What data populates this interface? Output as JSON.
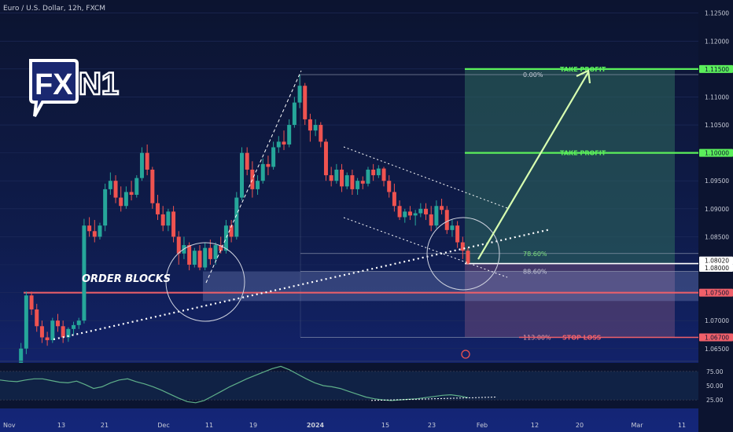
{
  "header": {
    "symbol_text": "Euro / U.S. Dollar, 12h, FXCM"
  },
  "logo": {
    "text_fx": "FX",
    "text_n1": "N1"
  },
  "colors": {
    "up": "#26a69a",
    "down": "#ef5350",
    "green_line": "#5bef5b",
    "red_line": "#f0606a",
    "profit_zone": "#2f6b5e",
    "loss_zone": "#6a4a7a",
    "order_block": "#8fa0d8",
    "rsi_line": "#5fb08a"
  },
  "chart_data": {
    "type": "candlestick",
    "title": "Euro / U.S. Dollar, 12h, FXCM",
    "y_ticks": [
      "1.12500",
      "1.12000",
      "1.11500",
      "1.11000",
      "1.10500",
      "1.10000",
      "1.09500",
      "1.09000",
      "1.08500",
      "1.08000",
      "1.07500",
      "1.07000",
      "1.06500"
    ],
    "ylim": [
      1.063,
      1.1265
    ],
    "x_ticks": [
      "Nov",
      "13",
      "21",
      "Dec",
      "11",
      "19",
      "2024",
      "15",
      "23",
      "Feb",
      "12",
      "20",
      "Mar",
      "11"
    ],
    "candles": [
      [
        1.0575,
        1.0615,
        1.0565,
        1.061
      ],
      [
        1.061,
        1.066,
        1.06,
        1.065
      ],
      [
        1.065,
        1.0752,
        1.064,
        1.0745
      ],
      [
        1.0745,
        1.0752,
        1.071,
        1.072
      ],
      [
        1.072,
        1.073,
        1.068,
        1.069
      ],
      [
        1.069,
        1.07,
        1.066,
        1.067
      ],
      [
        1.067,
        1.068,
        1.0655,
        1.0665
      ],
      [
        1.0665,
        1.0705,
        1.066,
        1.07
      ],
      [
        1.07,
        1.0712,
        1.068,
        1.069
      ],
      [
        1.069,
        1.07,
        1.066,
        1.067
      ],
      [
        1.067,
        1.0688,
        1.0662,
        1.0685
      ],
      [
        1.0685,
        1.0698,
        1.0675,
        1.0692
      ],
      [
        1.0692,
        1.0705,
        1.0685,
        1.07
      ],
      [
        1.07,
        1.0882,
        1.0695,
        1.087
      ],
      [
        1.087,
        1.0885,
        1.085,
        1.086
      ],
      [
        1.086,
        1.088,
        1.084,
        1.085
      ],
      [
        1.085,
        1.0875,
        1.0845,
        1.087
      ],
      [
        1.087,
        1.0945,
        1.086,
        1.0935
      ],
      [
        1.0935,
        1.0965,
        1.0925,
        1.095
      ],
      [
        1.095,
        1.096,
        1.091,
        1.092
      ],
      [
        1.092,
        1.094,
        1.0895,
        1.0905
      ],
      [
        1.0905,
        1.094,
        1.09,
        1.093
      ],
      [
        1.093,
        1.095,
        1.0915,
        1.0925
      ],
      [
        1.0925,
        1.096,
        1.092,
        1.0955
      ],
      [
        1.0955,
        1.101,
        1.095,
        1.1
      ],
      [
        1.1,
        1.1015,
        1.096,
        1.097
      ],
      [
        1.097,
        1.0975,
        1.09,
        1.091
      ],
      [
        1.091,
        1.0925,
        1.088,
        1.089
      ],
      [
        1.089,
        1.0905,
        1.086,
        1.087
      ],
      [
        1.087,
        1.09,
        1.086,
        1.0895
      ],
      [
        1.0895,
        1.0905,
        1.084,
        1.085
      ],
      [
        1.085,
        1.086,
        1.08,
        1.082
      ],
      [
        1.082,
        1.085,
        1.081,
        1.0835
      ],
      [
        1.0835,
        1.084,
        1.079,
        1.08
      ],
      [
        1.08,
        1.083,
        1.0795,
        1.0825
      ],
      [
        1.0825,
        1.0835,
        1.079,
        1.0795
      ],
      [
        1.0795,
        1.084,
        1.079,
        1.083
      ],
      [
        1.083,
        1.0845,
        1.08,
        1.081
      ],
      [
        1.081,
        1.084,
        1.08,
        1.0835
      ],
      [
        1.0835,
        1.085,
        1.082,
        1.0825
      ],
      [
        1.0825,
        1.088,
        1.082,
        1.087
      ],
      [
        1.087,
        1.088,
        1.084,
        1.085
      ],
      [
        1.085,
        1.093,
        1.0845,
        1.092
      ],
      [
        1.092,
        1.101,
        1.0915,
        1.1
      ],
      [
        1.1,
        1.101,
        1.096,
        1.097
      ],
      [
        1.097,
        1.0985,
        1.092,
        1.0935
      ],
      [
        1.0935,
        1.096,
        1.0925,
        1.095
      ],
      [
        1.095,
        1.099,
        1.0945,
        1.098
      ],
      [
        1.098,
        1.0995,
        1.096,
        1.0975
      ],
      [
        1.0975,
        1.102,
        1.097,
        1.101
      ],
      [
        1.101,
        1.103,
        1.1,
        1.102
      ],
      [
        1.102,
        1.104,
        1.1005,
        1.1015
      ],
      [
        1.1015,
        1.106,
        1.101,
        1.105
      ],
      [
        1.105,
        1.11,
        1.1045,
        1.109
      ],
      [
        1.109,
        1.114,
        1.108,
        1.112
      ],
      [
        1.112,
        1.1125,
        1.105,
        1.106
      ],
      [
        1.106,
        1.107,
        1.102,
        1.104
      ],
      [
        1.104,
        1.106,
        1.103,
        1.105
      ],
      [
        1.105,
        1.1055,
        1.101,
        1.102
      ],
      [
        1.102,
        1.1025,
        1.095,
        1.096
      ],
      [
        1.096,
        1.0975,
        1.094,
        1.095
      ],
      [
        1.095,
        1.098,
        1.0945,
        1.097
      ],
      [
        1.097,
        1.098,
        1.093,
        1.094
      ],
      [
        1.094,
        1.0965,
        1.0935,
        1.096
      ],
      [
        1.096,
        1.097,
        1.0925,
        1.0935
      ],
      [
        1.0935,
        1.0955,
        1.0925,
        1.095
      ],
      [
        1.095,
        1.0958,
        1.0935,
        1.0945
      ],
      [
        1.0945,
        1.0975,
        1.094,
        1.097
      ],
      [
        1.097,
        1.098,
        1.095,
        1.096
      ],
      [
        1.096,
        1.0978,
        1.0955,
        1.0972
      ],
      [
        1.0972,
        1.0975,
        1.094,
        1.095
      ],
      [
        1.095,
        1.096,
        1.092,
        1.093
      ],
      [
        1.093,
        1.0945,
        1.0895,
        1.0905
      ],
      [
        1.0905,
        1.0915,
        1.088,
        1.0885
      ],
      [
        1.0885,
        1.09,
        1.0875,
        1.0895
      ],
      [
        1.0895,
        1.0905,
        1.088,
        1.0888
      ],
      [
        1.0888,
        1.0898,
        1.087,
        1.0892
      ],
      [
        1.0892,
        1.091,
        1.0885,
        1.09
      ],
      [
        1.09,
        1.091,
        1.088,
        1.089
      ],
      [
        1.089,
        1.0905,
        1.086,
        1.087
      ],
      [
        1.087,
        1.0915,
        1.0865,
        1.0905
      ],
      [
        1.0905,
        1.0918,
        1.089,
        1.0898
      ],
      [
        1.0898,
        1.0905,
        1.0855,
        1.0862
      ],
      [
        1.0862,
        1.088,
        1.085,
        1.087
      ],
      [
        1.087,
        1.0878,
        1.083,
        1.084
      ],
      [
        1.084,
        1.085,
        1.081,
        1.0825
      ],
      [
        1.0825,
        1.083,
        1.08,
        1.0802
      ]
    ],
    "levels": [
      {
        "price": 1.115,
        "label": "TAKE PROFIT",
        "axis_label": "1.11500",
        "color": "#5bef5b"
      },
      {
        "price": 1.1,
        "label": "TAKE PROFIT",
        "axis_label": "1.10000",
        "color": "#5bef5b"
      },
      {
        "price": 1.0802,
        "label": "",
        "axis_label": "1.08020",
        "color": "#ffffff"
      },
      {
        "price": 1.08,
        "label": "",
        "axis_label": "1.08000",
        "color": "#ffffff"
      },
      {
        "price": 1.075,
        "label": "",
        "axis_label": "1.07500",
        "color": "#f0606a"
      },
      {
        "price": 1.067,
        "label": "STOP LOSS",
        "axis_label": "1.06700",
        "color": "#f0606a"
      }
    ],
    "fib_levels": [
      {
        "price": 1.114,
        "label": "0.00%"
      },
      {
        "price": 1.082,
        "label": "78.60%"
      },
      {
        "price": 1.0788,
        "label": "88.60%"
      },
      {
        "price": 1.067,
        "label": "113.00%"
      }
    ],
    "annotations": {
      "order_blocks": "ORDER BLOCKS"
    },
    "rsi": {
      "y_ticks": [
        "75.00",
        "50.00",
        "25.00"
      ],
      "ylim": [
        10,
        90
      ],
      "values": [
        60,
        58,
        57,
        60,
        62,
        62,
        59,
        56,
        55,
        58,
        52,
        45,
        48,
        55,
        60,
        62,
        57,
        53,
        48,
        42,
        35,
        28,
        22,
        20,
        24,
        32,
        40,
        48,
        55,
        62,
        68,
        74,
        80,
        84,
        78,
        70,
        62,
        55,
        50,
        48,
        45,
        40,
        35,
        30,
        27,
        25,
        24,
        25,
        26,
        27,
        29,
        31,
        33,
        34,
        32,
        29
      ]
    }
  }
}
